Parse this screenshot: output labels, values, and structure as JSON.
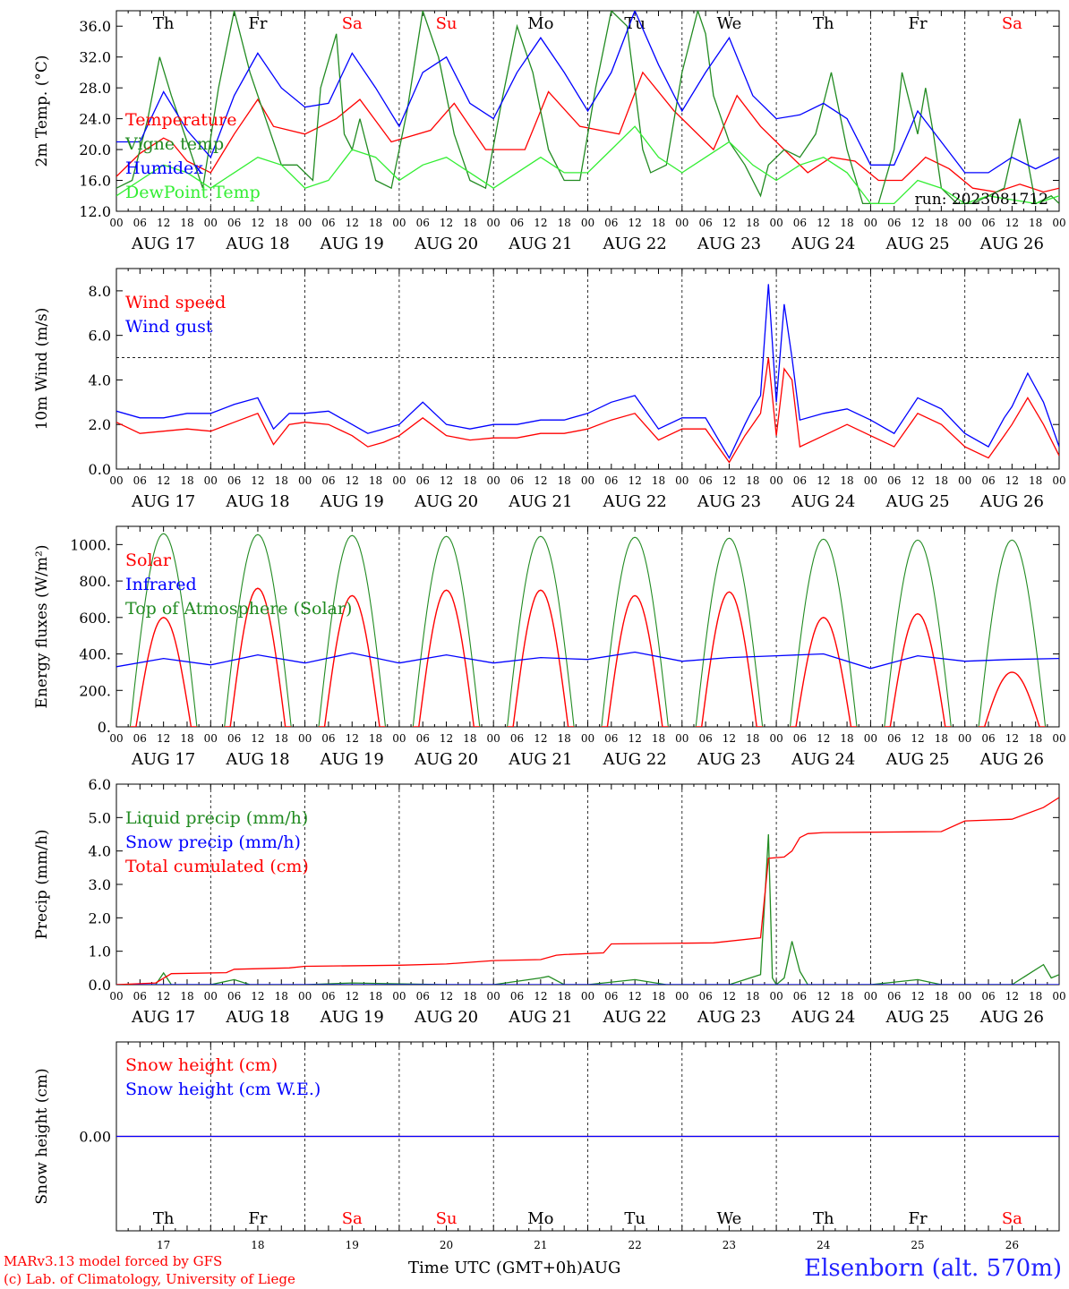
{
  "days": {
    "names": [
      "Th",
      "Fr",
      "Sa",
      "Su",
      "Mo",
      "Tu",
      "We",
      "Th",
      "Fr",
      "Sa"
    ],
    "weekend_flags": [
      false,
      false,
      true,
      true,
      false,
      false,
      false,
      false,
      false,
      true
    ],
    "weekday_color": "#000000",
    "weekend_color": "#ff0000",
    "dates": [
      "AUG 17",
      "AUG 18",
      "AUG 19",
      "AUG 20",
      "AUG 21",
      "AUG 22",
      "AUG 23",
      "AUG 24",
      "AUG 25",
      "AUG 26"
    ],
    "day_numbers": [
      "17",
      "18",
      "19",
      "20",
      "21",
      "22",
      "23",
      "24",
      "25",
      "26"
    ],
    "hour_ticks": [
      "00",
      "06",
      "12",
      "18"
    ]
  },
  "footer": {
    "credit_line1": "MARv3.13 model forced by GFS",
    "credit_line2": "(c) Lab. of Climatology, University of Liege",
    "x_title": "Time UTC (GMT+0h)AUG",
    "station": "Elsenborn (alt. 570m)"
  },
  "chart_data": [
    {
      "type": "line",
      "ylabel": "2m Temp. (°C)",
      "ylim": [
        12,
        38
      ],
      "yticks": [
        "12.0",
        "16.0",
        "20.0",
        "24.0",
        "28.0",
        "32.0",
        "36.0"
      ],
      "annotation": "run: 2023081712",
      "x_units": "hours since AUG 17 00 UTC",
      "series": [
        {
          "name": "Temperature",
          "color": "#ff0000",
          "x": [
            0,
            6,
            12,
            14,
            18,
            24,
            30,
            36,
            40,
            48,
            56,
            62,
            70,
            80,
            86,
            94,
            104,
            110,
            118,
            128,
            134,
            142,
            152,
            158,
            164,
            170,
            176,
            182,
            188,
            194,
            200,
            206,
            212,
            218,
            224,
            230,
            236,
            240
          ],
          "values": [
            16.5,
            19.5,
            21.5,
            21,
            18.5,
            17,
            22,
            26.5,
            23,
            22,
            24,
            26.5,
            21,
            22.5,
            26,
            20,
            20,
            27.5,
            23,
            22,
            30,
            25,
            20,
            27,
            23,
            20,
            17,
            19,
            18.5,
            16,
            16,
            19,
            17.5,
            15,
            14.5,
            15.5,
            14.5,
            15
          ]
        },
        {
          "name": "Vigne temp",
          "color": "#228b22",
          "x": [
            0,
            4,
            8,
            11,
            14,
            18,
            22,
            26,
            30,
            34,
            38,
            42,
            46,
            50,
            52,
            56,
            58,
            60,
            62,
            66,
            70,
            74,
            78,
            82,
            86,
            90,
            94,
            98,
            102,
            106,
            110,
            114,
            118,
            122,
            126,
            130,
            134,
            136,
            140,
            144,
            148,
            150,
            152,
            156,
            160,
            164,
            166,
            170,
            174,
            178,
            182,
            186,
            190,
            194,
            198,
            200,
            204,
            206,
            208,
            210,
            214,
            218,
            222,
            226,
            230,
            234,
            238,
            240
          ],
          "values": [
            15,
            16,
            24,
            32,
            27,
            21,
            15,
            28,
            38,
            30,
            24,
            18,
            18,
            16,
            28,
            35,
            22,
            20,
            24,
            16,
            15,
            25,
            38,
            32,
            22,
            16,
            15,
            26,
            36,
            30,
            20,
            16,
            16,
            28,
            38,
            36,
            20,
            17,
            18,
            30,
            38,
            35,
            27,
            21,
            18,
            14,
            18,
            20,
            19,
            22,
            30,
            20,
            13,
            13,
            20,
            30,
            22,
            28,
            22,
            15,
            13,
            13,
            14,
            15,
            24,
            13,
            14,
            13
          ]
        },
        {
          "name": "Humidex",
          "color": "#0000ff",
          "x": [
            0,
            6,
            12,
            18,
            24,
            30,
            36,
            42,
            48,
            54,
            60,
            66,
            72,
            78,
            84,
            90,
            96,
            102,
            108,
            114,
            120,
            126,
            132,
            138,
            144,
            150,
            156,
            162,
            168,
            174,
            180,
            186,
            192,
            198,
            204,
            210,
            216,
            222,
            228,
            234,
            240
          ],
          "values": [
            21,
            21,
            27.5,
            22.5,
            19,
            27,
            32.5,
            28,
            25.5,
            26,
            32.5,
            28,
            23,
            30,
            32,
            26,
            24,
            30,
            34.5,
            30,
            25,
            30,
            38,
            31,
            25,
            30,
            34.5,
            27,
            24,
            24.5,
            26,
            24,
            18,
            18,
            25,
            21,
            17,
            17,
            19,
            17.5,
            19
          ]
        },
        {
          "name": "DewPoint Temp",
          "color": "#33ee33",
          "x": [
            0,
            6,
            12,
            18,
            24,
            30,
            36,
            42,
            48,
            54,
            60,
            66,
            72,
            78,
            84,
            90,
            96,
            102,
            108,
            114,
            120,
            126,
            132,
            138,
            144,
            150,
            156,
            162,
            168,
            174,
            180,
            186,
            192,
            198,
            204,
            210,
            216,
            222,
            228,
            234,
            240
          ],
          "values": [
            14,
            16,
            18,
            17,
            15,
            17,
            19,
            18,
            15,
            16,
            20,
            19,
            16,
            18,
            19,
            17,
            15,
            17,
            19,
            17,
            17,
            20,
            23,
            19,
            17,
            19,
            21,
            18,
            16,
            18,
            19,
            17,
            13,
            13,
            16,
            15,
            13,
            14,
            13.5,
            13,
            14
          ]
        }
      ]
    },
    {
      "type": "line",
      "ylabel": "10m Wind (m/s)",
      "ylim": [
        0,
        9
      ],
      "yticks": [
        "0.0",
        "2.0",
        "4.0",
        "6.0",
        "8.0"
      ],
      "reference_line": 5,
      "x_units": "hours since AUG 17 00 UTC",
      "series": [
        {
          "name": "Wind speed",
          "color": "#ff0000",
          "x": [
            0,
            6,
            12,
            18,
            24,
            30,
            36,
            40,
            44,
            48,
            54,
            60,
            64,
            68,
            72,
            78,
            84,
            90,
            96,
            102,
            108,
            114,
            120,
            126,
            132,
            138,
            144,
            150,
            156,
            160,
            162,
            164,
            166,
            168,
            170,
            172,
            174,
            180,
            186,
            192,
            198,
            204,
            210,
            216,
            222,
            226,
            228,
            232,
            236,
            240
          ],
          "values": [
            2.1,
            1.6,
            1.7,
            1.8,
            1.7,
            2.1,
            2.5,
            1.1,
            2.0,
            2.1,
            2.0,
            1.5,
            1.0,
            1.2,
            1.5,
            2.3,
            1.5,
            1.3,
            1.4,
            1.4,
            1.6,
            1.6,
            1.8,
            2.2,
            2.5,
            1.3,
            1.8,
            1.8,
            0.3,
            1.5,
            2.0,
            2.5,
            5.0,
            1.5,
            4.5,
            4.0,
            1.0,
            1.5,
            2.0,
            1.5,
            1.0,
            2.5,
            2.0,
            1.0,
            0.5,
            1.5,
            2.0,
            3.2,
            2.0,
            0.6
          ]
        },
        {
          "name": "Wind gust",
          "color": "#0000ff",
          "x": [
            0,
            6,
            12,
            18,
            24,
            30,
            36,
            40,
            44,
            48,
            54,
            60,
            64,
            68,
            72,
            78,
            84,
            90,
            96,
            102,
            108,
            114,
            120,
            126,
            132,
            138,
            144,
            150,
            156,
            160,
            162,
            164,
            166,
            168,
            170,
            172,
            174,
            180,
            186,
            192,
            198,
            204,
            210,
            216,
            222,
            226,
            228,
            232,
            236,
            240
          ],
          "values": [
            2.6,
            2.3,
            2.3,
            2.5,
            2.5,
            2.9,
            3.2,
            1.8,
            2.5,
            2.5,
            2.6,
            2.0,
            1.6,
            1.8,
            2.0,
            3.0,
            2.0,
            1.8,
            2.0,
            2.0,
            2.2,
            2.2,
            2.5,
            3.0,
            3.3,
            1.8,
            2.3,
            2.3,
            0.5,
            2.0,
            2.7,
            3.3,
            8.3,
            3.0,
            7.4,
            5.0,
            2.2,
            2.5,
            2.7,
            2.2,
            1.6,
            3.2,
            2.7,
            1.6,
            1.0,
            2.3,
            2.8,
            4.3,
            3.0,
            1.0
          ]
        }
      ]
    },
    {
      "type": "line",
      "ylabel": "Energy fluxes (W/m²)",
      "ylim": [
        0,
        1100
      ],
      "yticks": [
        "0.",
        "200.",
        "400.",
        "600.",
        "800.",
        "1000."
      ],
      "x_units": "hours since AUG 17 00 UTC",
      "daily_peaks": {
        "top_of_atmosphere_solar": [
          1060,
          1055,
          1050,
          1045,
          1045,
          1040,
          1035,
          1030,
          1025,
          1025
        ],
        "solar": [
          600,
          760,
          720,
          750,
          750,
          720,
          740,
          600,
          620,
          300
        ]
      },
      "series": [
        {
          "name": "Solar",
          "color": "#ff0000"
        },
        {
          "name": "Infrared",
          "color": "#0000ff",
          "x": [
            0,
            12,
            24,
            36,
            48,
            60,
            72,
            84,
            96,
            108,
            120,
            132,
            144,
            156,
            168,
            180,
            192,
            204,
            216,
            228,
            240
          ],
          "values": [
            330,
            375,
            340,
            395,
            350,
            405,
            350,
            395,
            350,
            380,
            370,
            410,
            360,
            380,
            390,
            400,
            320,
            390,
            360,
            370,
            375
          ]
        },
        {
          "name": "Top of Atmosphere (Solar)",
          "color": "#228b22"
        }
      ]
    },
    {
      "type": "line",
      "ylabel": "Precip (mm/h)",
      "ylim": [
        0,
        6
      ],
      "yticks": [
        "0.0",
        "1.0",
        "2.0",
        "3.0",
        "4.0",
        "5.0",
        "6.0"
      ],
      "x_units": "hours since AUG 17 00 UTC",
      "series": [
        {
          "name": "Liquid precip (mm/h)",
          "color": "#228b22",
          "x": [
            0,
            10,
            12,
            14,
            24,
            30,
            34,
            48,
            60,
            84,
            96,
            108,
            110,
            114,
            120,
            132,
            140,
            156,
            164,
            166,
            167,
            168,
            170,
            172,
            174,
            176,
            180,
            192,
            204,
            210,
            216,
            228,
            236,
            238,
            240
          ],
          "values": [
            0,
            0,
            0.35,
            0,
            0,
            0.15,
            0,
            0,
            0.05,
            0,
            0,
            0.2,
            0.25,
            0,
            0,
            0.15,
            0,
            0,
            0.3,
            4.5,
            0.2,
            0,
            0.2,
            1.3,
            0.4,
            0,
            0,
            0,
            0.15,
            0,
            0,
            0,
            0.6,
            0.2,
            0.3
          ]
        },
        {
          "name": "Snow precip (mm/h)",
          "color": "#0000ff",
          "x": [
            0,
            240
          ],
          "values": [
            0,
            0
          ]
        },
        {
          "name": "Total cumulated (cm)",
          "color": "#ff0000",
          "x": [
            0,
            10,
            14,
            28,
            30,
            44,
            48,
            72,
            84,
            96,
            108,
            112,
            114,
            124,
            126,
            152,
            164,
            166,
            170,
            172,
            174,
            176,
            180,
            210,
            216,
            228,
            236,
            240
          ],
          "values": [
            0,
            0.05,
            0.33,
            0.36,
            0.46,
            0.5,
            0.55,
            0.58,
            0.62,
            0.72,
            0.75,
            0.88,
            0.9,
            0.95,
            1.22,
            1.25,
            1.4,
            3.78,
            3.82,
            4.0,
            4.4,
            4.52,
            4.55,
            4.58,
            4.9,
            4.95,
            5.3,
            5.6
          ]
        }
      ]
    },
    {
      "type": "line",
      "ylabel": "Snow height (cm)",
      "ylim": [
        -1,
        1
      ],
      "yticks": [
        "0.00"
      ],
      "x_units": "hours since AUG 17 00 UTC",
      "series": [
        {
          "name": "Snow height (cm)",
          "color": "#ff0000",
          "x": [
            0,
            240
          ],
          "values": [
            0,
            0
          ]
        },
        {
          "name": "Snow height (cm W.E.)",
          "color": "#0000ff",
          "x": [
            0,
            240
          ],
          "values": [
            0,
            0
          ]
        }
      ]
    }
  ]
}
